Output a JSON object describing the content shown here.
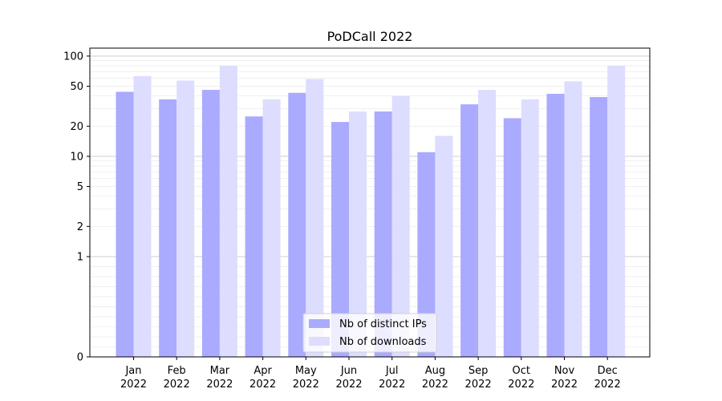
{
  "chart_data": {
    "type": "bar",
    "title": "PoDCall 2022",
    "xlabel": "",
    "ylabel": "",
    "yscale": "symlog",
    "ylim": [
      0,
      120
    ],
    "yticks": [
      0,
      1,
      2,
      5,
      10,
      20,
      50,
      100
    ],
    "grid": true,
    "legend_position": "bottom-center",
    "categories": [
      "Jan\n2022",
      "Feb\n2022",
      "Mar\n2022",
      "Apr\n2022",
      "May\n2022",
      "Jun\n2022",
      "Jul\n2022",
      "Aug\n2022",
      "Sep\n2022",
      "Oct\n2022",
      "Nov\n2022",
      "Dec\n2022"
    ],
    "series": [
      {
        "name": "Nb of distinct IPs",
        "color": "#aaaaff",
        "values": [
          44,
          37,
          46,
          25,
          43,
          22,
          28,
          11,
          33,
          24,
          42,
          39
        ]
      },
      {
        "name": "Nb of downloads",
        "color": "#ddddff",
        "values": [
          63,
          57,
          80,
          37,
          59,
          28,
          40,
          16,
          46,
          37,
          56,
          80
        ]
      }
    ]
  }
}
